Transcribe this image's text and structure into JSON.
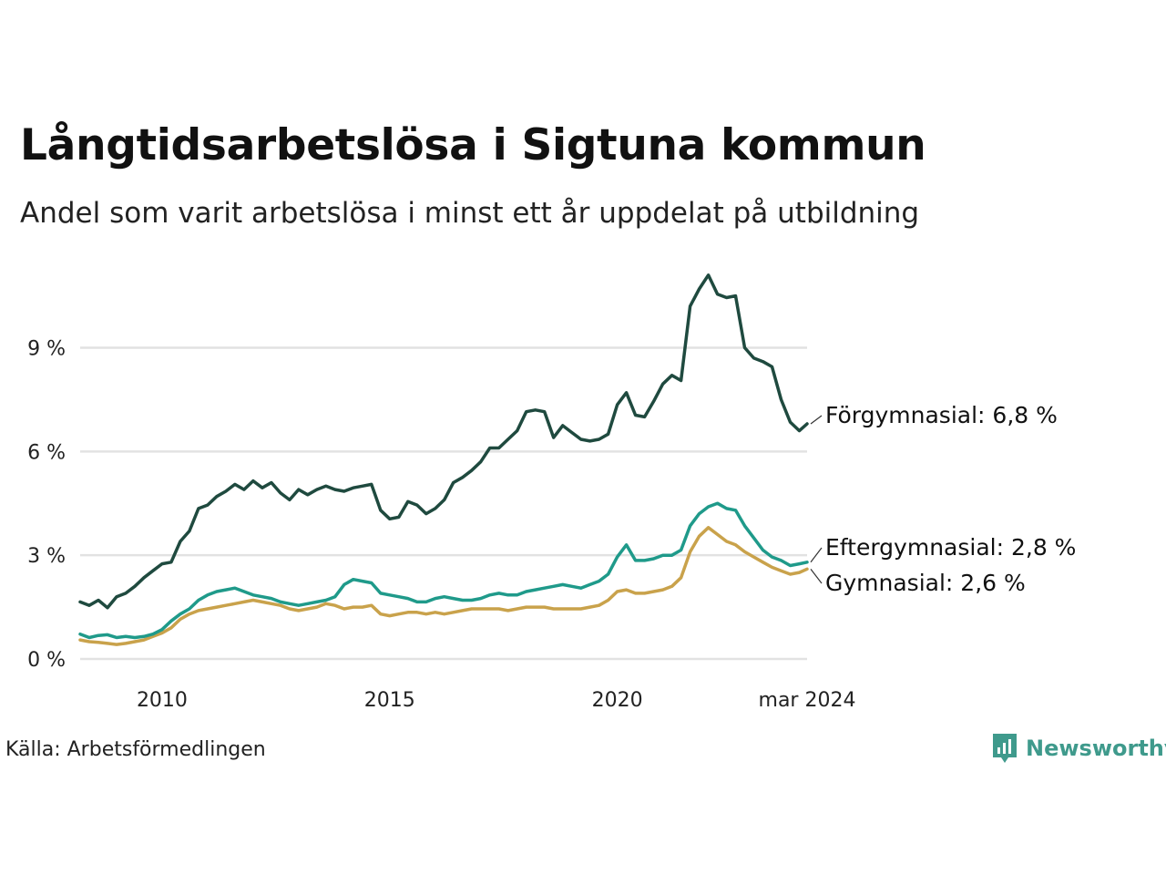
{
  "title": "Långtidsarbetslösa i Sigtuna kommun",
  "subtitle": "Andel som varit arbetslösa i minst ett år uppdelat på utbildning",
  "source": "Källa: Arbetsförmedlingen",
  "brand": {
    "name": "Newsworthy",
    "icon": "bar-chart-speech-icon",
    "color": "#3f9a8c"
  },
  "chart_data": {
    "type": "line",
    "xlim": [
      2008.2,
      2024.17
    ],
    "ylim": [
      0,
      11.2
    ],
    "y_ticks": [
      0,
      3,
      6,
      9
    ],
    "y_tick_labels": [
      "0 %",
      "3 %",
      "6 %",
      "9 %"
    ],
    "x_ticks": [
      2010,
      2015,
      2020,
      2024.17
    ],
    "x_tick_labels": [
      "2010",
      "2015",
      "2020",
      "mar 2024"
    ],
    "grid": true,
    "series": [
      {
        "name": "Förgymnasial",
        "label": "Förgymnasial: 6,8 %",
        "color": "#1f4a3f",
        "points": [
          [
            2008.2,
            1.65
          ],
          [
            2008.4,
            1.55
          ],
          [
            2008.6,
            1.7
          ],
          [
            2008.8,
            1.48
          ],
          [
            2009.0,
            1.8
          ],
          [
            2009.2,
            1.9
          ],
          [
            2009.4,
            2.1
          ],
          [
            2009.6,
            2.35
          ],
          [
            2009.8,
            2.55
          ],
          [
            2010.0,
            2.75
          ],
          [
            2010.2,
            2.8
          ],
          [
            2010.4,
            3.4
          ],
          [
            2010.6,
            3.7
          ],
          [
            2010.8,
            4.35
          ],
          [
            2011.0,
            4.45
          ],
          [
            2011.2,
            4.7
          ],
          [
            2011.4,
            4.85
          ],
          [
            2011.6,
            5.05
          ],
          [
            2011.8,
            4.9
          ],
          [
            2012.0,
            5.15
          ],
          [
            2012.2,
            4.95
          ],
          [
            2012.4,
            5.1
          ],
          [
            2012.6,
            4.8
          ],
          [
            2012.8,
            4.6
          ],
          [
            2013.0,
            4.9
          ],
          [
            2013.2,
            4.75
          ],
          [
            2013.4,
            4.9
          ],
          [
            2013.6,
            5.0
          ],
          [
            2013.8,
            4.9
          ],
          [
            2014.0,
            4.85
          ],
          [
            2014.2,
            4.95
          ],
          [
            2014.4,
            5.0
          ],
          [
            2014.6,
            5.05
          ],
          [
            2014.8,
            4.3
          ],
          [
            2015.0,
            4.05
          ],
          [
            2015.2,
            4.1
          ],
          [
            2015.4,
            4.55
          ],
          [
            2015.6,
            4.45
          ],
          [
            2015.8,
            4.2
          ],
          [
            2016.0,
            4.35
          ],
          [
            2016.2,
            4.6
          ],
          [
            2016.4,
            5.1
          ],
          [
            2016.6,
            5.25
          ],
          [
            2016.8,
            5.45
          ],
          [
            2017.0,
            5.7
          ],
          [
            2017.2,
            6.1
          ],
          [
            2017.4,
            6.1
          ],
          [
            2017.6,
            6.35
          ],
          [
            2017.8,
            6.6
          ],
          [
            2018.0,
            7.15
          ],
          [
            2018.2,
            7.2
          ],
          [
            2018.4,
            7.15
          ],
          [
            2018.6,
            6.4
          ],
          [
            2018.8,
            6.75
          ],
          [
            2019.0,
            6.55
          ],
          [
            2019.2,
            6.35
          ],
          [
            2019.4,
            6.3
          ],
          [
            2019.6,
            6.35
          ],
          [
            2019.8,
            6.5
          ],
          [
            2020.0,
            7.35
          ],
          [
            2020.2,
            7.7
          ],
          [
            2020.4,
            7.05
          ],
          [
            2020.6,
            7.0
          ],
          [
            2020.8,
            7.45
          ],
          [
            2021.0,
            7.95
          ],
          [
            2021.2,
            8.2
          ],
          [
            2021.4,
            8.05
          ],
          [
            2021.6,
            10.2
          ],
          [
            2021.8,
            10.7
          ],
          [
            2022.0,
            11.1
          ],
          [
            2022.2,
            10.55
          ],
          [
            2022.4,
            10.45
          ],
          [
            2022.6,
            10.5
          ],
          [
            2022.8,
            9.0
          ],
          [
            2023.0,
            8.7
          ],
          [
            2023.2,
            8.6
          ],
          [
            2023.4,
            8.45
          ],
          [
            2023.6,
            7.5
          ],
          [
            2023.8,
            6.85
          ],
          [
            2024.0,
            6.6
          ],
          [
            2024.17,
            6.8
          ]
        ]
      },
      {
        "name": "Eftergymnasial",
        "label": "Eftergymnasial: 2,8 %",
        "color": "#1f9a8a",
        "points": [
          [
            2008.2,
            0.72
          ],
          [
            2008.4,
            0.62
          ],
          [
            2008.6,
            0.68
          ],
          [
            2008.8,
            0.7
          ],
          [
            2009.0,
            0.62
          ],
          [
            2009.2,
            0.65
          ],
          [
            2009.4,
            0.62
          ],
          [
            2009.6,
            0.65
          ],
          [
            2009.8,
            0.72
          ],
          [
            2010.0,
            0.85
          ],
          [
            2010.2,
            1.1
          ],
          [
            2010.4,
            1.3
          ],
          [
            2010.6,
            1.45
          ],
          [
            2010.8,
            1.7
          ],
          [
            2011.0,
            1.85
          ],
          [
            2011.2,
            1.95
          ],
          [
            2011.4,
            2.0
          ],
          [
            2011.6,
            2.05
          ],
          [
            2011.8,
            1.95
          ],
          [
            2012.0,
            1.85
          ],
          [
            2012.2,
            1.8
          ],
          [
            2012.4,
            1.75
          ],
          [
            2012.6,
            1.65
          ],
          [
            2012.8,
            1.6
          ],
          [
            2013.0,
            1.55
          ],
          [
            2013.2,
            1.6
          ],
          [
            2013.4,
            1.65
          ],
          [
            2013.6,
            1.7
          ],
          [
            2013.8,
            1.8
          ],
          [
            2014.0,
            2.15
          ],
          [
            2014.2,
            2.3
          ],
          [
            2014.4,
            2.25
          ],
          [
            2014.6,
            2.2
          ],
          [
            2014.8,
            1.9
          ],
          [
            2015.0,
            1.85
          ],
          [
            2015.2,
            1.8
          ],
          [
            2015.4,
            1.75
          ],
          [
            2015.6,
            1.65
          ],
          [
            2015.8,
            1.65
          ],
          [
            2016.0,
            1.75
          ],
          [
            2016.2,
            1.8
          ],
          [
            2016.4,
            1.75
          ],
          [
            2016.6,
            1.7
          ],
          [
            2016.8,
            1.7
          ],
          [
            2017.0,
            1.75
          ],
          [
            2017.2,
            1.85
          ],
          [
            2017.4,
            1.9
          ],
          [
            2017.6,
            1.85
          ],
          [
            2017.8,
            1.85
          ],
          [
            2018.0,
            1.95
          ],
          [
            2018.2,
            2.0
          ],
          [
            2018.4,
            2.05
          ],
          [
            2018.6,
            2.1
          ],
          [
            2018.8,
            2.15
          ],
          [
            2019.0,
            2.1
          ],
          [
            2019.2,
            2.05
          ],
          [
            2019.4,
            2.15
          ],
          [
            2019.6,
            2.25
          ],
          [
            2019.8,
            2.45
          ],
          [
            2020.0,
            2.95
          ],
          [
            2020.2,
            3.3
          ],
          [
            2020.4,
            2.85
          ],
          [
            2020.6,
            2.85
          ],
          [
            2020.8,
            2.9
          ],
          [
            2021.0,
            3.0
          ],
          [
            2021.2,
            3.0
          ],
          [
            2021.4,
            3.15
          ],
          [
            2021.6,
            3.85
          ],
          [
            2021.8,
            4.2
          ],
          [
            2022.0,
            4.4
          ],
          [
            2022.2,
            4.5
          ],
          [
            2022.4,
            4.35
          ],
          [
            2022.6,
            4.3
          ],
          [
            2022.8,
            3.85
          ],
          [
            2023.0,
            3.5
          ],
          [
            2023.2,
            3.15
          ],
          [
            2023.4,
            2.95
          ],
          [
            2023.6,
            2.85
          ],
          [
            2023.8,
            2.7
          ],
          [
            2024.0,
            2.75
          ],
          [
            2024.17,
            2.8
          ]
        ]
      },
      {
        "name": "Gymnasial",
        "label": "Gymnasial: 2,6 %",
        "color": "#c9a24b",
        "points": [
          [
            2008.2,
            0.55
          ],
          [
            2008.4,
            0.5
          ],
          [
            2008.6,
            0.48
          ],
          [
            2008.8,
            0.45
          ],
          [
            2009.0,
            0.42
          ],
          [
            2009.2,
            0.45
          ],
          [
            2009.4,
            0.5
          ],
          [
            2009.6,
            0.55
          ],
          [
            2009.8,
            0.65
          ],
          [
            2010.0,
            0.75
          ],
          [
            2010.2,
            0.9
          ],
          [
            2010.4,
            1.15
          ],
          [
            2010.6,
            1.3
          ],
          [
            2010.8,
            1.4
          ],
          [
            2011.0,
            1.45
          ],
          [
            2011.2,
            1.5
          ],
          [
            2011.4,
            1.55
          ],
          [
            2011.6,
            1.6
          ],
          [
            2011.8,
            1.65
          ],
          [
            2012.0,
            1.7
          ],
          [
            2012.2,
            1.65
          ],
          [
            2012.4,
            1.6
          ],
          [
            2012.6,
            1.55
          ],
          [
            2012.8,
            1.45
          ],
          [
            2013.0,
            1.4
          ],
          [
            2013.2,
            1.45
          ],
          [
            2013.4,
            1.5
          ],
          [
            2013.6,
            1.6
          ],
          [
            2013.8,
            1.55
          ],
          [
            2014.0,
            1.45
          ],
          [
            2014.2,
            1.5
          ],
          [
            2014.4,
            1.5
          ],
          [
            2014.6,
            1.55
          ],
          [
            2014.8,
            1.3
          ],
          [
            2015.0,
            1.25
          ],
          [
            2015.2,
            1.3
          ],
          [
            2015.4,
            1.35
          ],
          [
            2015.6,
            1.35
          ],
          [
            2015.8,
            1.3
          ],
          [
            2016.0,
            1.35
          ],
          [
            2016.2,
            1.3
          ],
          [
            2016.4,
            1.35
          ],
          [
            2016.6,
            1.4
          ],
          [
            2016.8,
            1.45
          ],
          [
            2017.0,
            1.45
          ],
          [
            2017.2,
            1.45
          ],
          [
            2017.4,
            1.45
          ],
          [
            2017.6,
            1.4
          ],
          [
            2017.8,
            1.45
          ],
          [
            2018.0,
            1.5
          ],
          [
            2018.2,
            1.5
          ],
          [
            2018.4,
            1.5
          ],
          [
            2018.6,
            1.45
          ],
          [
            2018.8,
            1.45
          ],
          [
            2019.0,
            1.45
          ],
          [
            2019.2,
            1.45
          ],
          [
            2019.4,
            1.5
          ],
          [
            2019.6,
            1.55
          ],
          [
            2019.8,
            1.7
          ],
          [
            2020.0,
            1.95
          ],
          [
            2020.2,
            2.0
          ],
          [
            2020.4,
            1.9
          ],
          [
            2020.6,
            1.9
          ],
          [
            2020.8,
            1.95
          ],
          [
            2021.0,
            2.0
          ],
          [
            2021.2,
            2.1
          ],
          [
            2021.4,
            2.35
          ],
          [
            2021.6,
            3.1
          ],
          [
            2021.8,
            3.55
          ],
          [
            2022.0,
            3.8
          ],
          [
            2022.2,
            3.6
          ],
          [
            2022.4,
            3.4
          ],
          [
            2022.6,
            3.3
          ],
          [
            2022.8,
            3.1
          ],
          [
            2023.0,
            2.95
          ],
          [
            2023.2,
            2.8
          ],
          [
            2023.4,
            2.65
          ],
          [
            2023.6,
            2.55
          ],
          [
            2023.8,
            2.45
          ],
          [
            2024.0,
            2.5
          ],
          [
            2024.17,
            2.6
          ]
        ]
      }
    ]
  }
}
